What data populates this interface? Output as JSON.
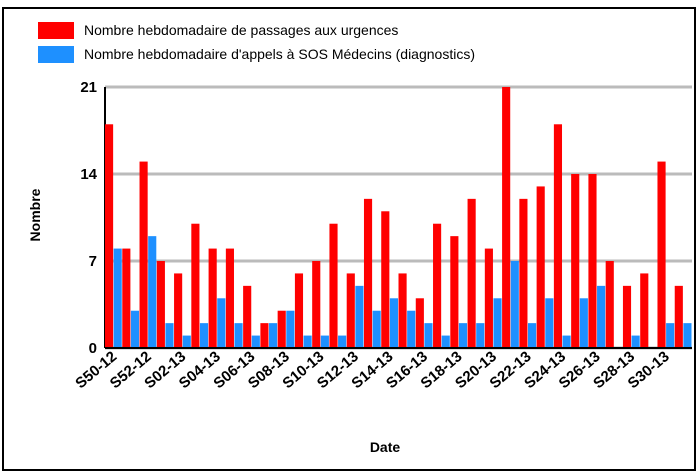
{
  "chart_data": {
    "type": "bar",
    "x_label": "Date",
    "y_label": "Nombre",
    "categories": [
      "S50-12",
      null,
      "S52-12",
      null,
      "S02-13",
      null,
      "S04-13",
      null,
      "S06-13",
      null,
      "S08-13",
      null,
      "S10-13",
      null,
      "S12-13",
      null,
      "S14-13",
      null,
      "S16-13",
      null,
      "S18-13",
      null,
      "S20-13",
      null,
      "S22-13",
      null,
      "S24-13",
      null,
      "S26-13",
      null,
      "S28-13",
      null,
      "S30-13",
      null
    ],
    "series": [
      {
        "name": "Nombre hebdomadaire de passages aux urgences",
        "color": "#ff0000",
        "values": [
          18,
          8,
          15,
          7,
          6,
          10,
          8,
          8,
          5,
          2,
          3,
          6,
          7,
          10,
          6,
          12,
          11,
          6,
          4,
          10,
          9,
          12,
          8,
          21,
          12,
          13,
          18,
          14,
          14,
          7,
          5,
          6,
          15,
          5
        ]
      },
      {
        "name": "Nombre hebdomadaire d'appels à SOS Médecins (diagnostics)",
        "color": "#1e90ff",
        "values": [
          8,
          3,
          9,
          2,
          1,
          2,
          4,
          2,
          1,
          2,
          3,
          1,
          1,
          1,
          5,
          3,
          4,
          3,
          2,
          1,
          2,
          2,
          4,
          7,
          2,
          4,
          1,
          4,
          5,
          0,
          1,
          0,
          2,
          2
        ]
      }
    ],
    "ylim": [
      0,
      21
    ],
    "yticks": [
      0,
      7,
      14,
      21
    ],
    "grid": true
  }
}
